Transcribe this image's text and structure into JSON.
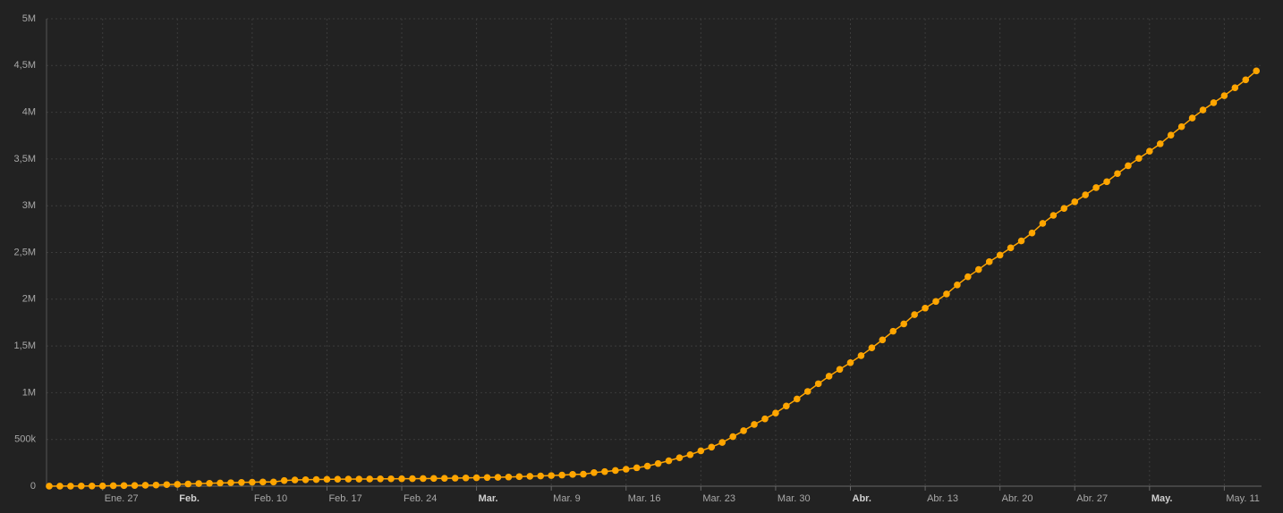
{
  "chart_data": {
    "type": "line",
    "categories": [
      null,
      null,
      null,
      null,
      null,
      "Ene. 27",
      null,
      null,
      null,
      null,
      null,
      null,
      "Feb.",
      null,
      null,
      null,
      null,
      null,
      null,
      "Feb. 10",
      null,
      null,
      null,
      null,
      null,
      null,
      "Feb. 17",
      null,
      null,
      null,
      null,
      null,
      null,
      "Feb. 24",
      null,
      null,
      null,
      null,
      null,
      null,
      "Mar.",
      null,
      null,
      null,
      null,
      null,
      null,
      "Mar. 9",
      null,
      null,
      null,
      null,
      null,
      null,
      "Mar. 16",
      null,
      null,
      null,
      null,
      null,
      null,
      "Mar. 23",
      null,
      null,
      null,
      null,
      null,
      null,
      "Mar. 30",
      null,
      null,
      null,
      null,
      null,
      null,
      "Abr.",
      null,
      null,
      null,
      null,
      null,
      null,
      "Abr. 13",
      null,
      null,
      null,
      null,
      null,
      null,
      "Abr. 20",
      null,
      null,
      null,
      null,
      null,
      null,
      "Abr. 27",
      null,
      null,
      null,
      null,
      null,
      null,
      "May.",
      null,
      null,
      null,
      null,
      null,
      null,
      "May. 11",
      null,
      null,
      null
    ],
    "values": [
      555,
      654,
      941,
      1434,
      2118,
      2927,
      5578,
      6166,
      8234,
      9927,
      12038,
      16787,
      19881,
      23892,
      27635,
      30794,
      34391,
      37120,
      40150,
      42762,
      44802,
      45221,
      60368,
      66885,
      69030,
      71224,
      73258,
      75136,
      75639,
      76197,
      76819,
      78572,
      78958,
      79561,
      80406,
      81388,
      82746,
      84112,
      86011,
      88369,
      90306,
      92840,
      95120,
      97886,
      101801,
      105847,
      109821,
      113590,
      118620,
      125875,
      128352,
      145205,
      156101,
      167454,
      181574,
      197102,
      214821,
      242570,
      272208,
      304507,
      336953,
      378235,
      418045,
      467653,
      529591,
      593291,
      660706,
      720117,
      782365,
      857487,
      932605,
      1013466,
      1095917,
      1176060,
      1249754,
      1321481,
      1396476,
      1479804,
      1565278,
      1657526,
      1735650,
      1834721,
      1904838,
      1976191,
      2056054,
      2152437,
      2240190,
      2317759,
      2401378,
      2472259,
      2549123,
      2624083,
      2708885,
      2811193,
      2896746,
      2971475,
      3041764,
      3116398,
      3193886,
      3256846,
      3343777,
      3427584,
      3506729,
      3583055,
      3662691,
      3755341,
      3845718,
      3938064,
      4024009,
      4101699,
      4177502,
      4261747,
      4347018,
      4442163
    ],
    "color": "#ffa500",
    "ylim": [
      0,
      5000000
    ],
    "yticks": [
      0,
      {
        "value": 500000,
        "label": "500k"
      },
      {
        "value": 1000000,
        "label": "1M"
      },
      {
        "value": 1500000,
        "label": "1,5M"
      },
      {
        "value": 2000000,
        "label": "2M"
      },
      {
        "value": 2500000,
        "label": "2,5M"
      },
      {
        "value": 3000000,
        "label": "3M"
      },
      {
        "value": 3500000,
        "label": "3,5M"
      },
      {
        "value": 4000000,
        "label": "4M"
      },
      {
        "value": 4500000,
        "label": "4,5M"
      },
      {
        "value": 5000000,
        "label": "5M"
      }
    ],
    "grid": true
  }
}
